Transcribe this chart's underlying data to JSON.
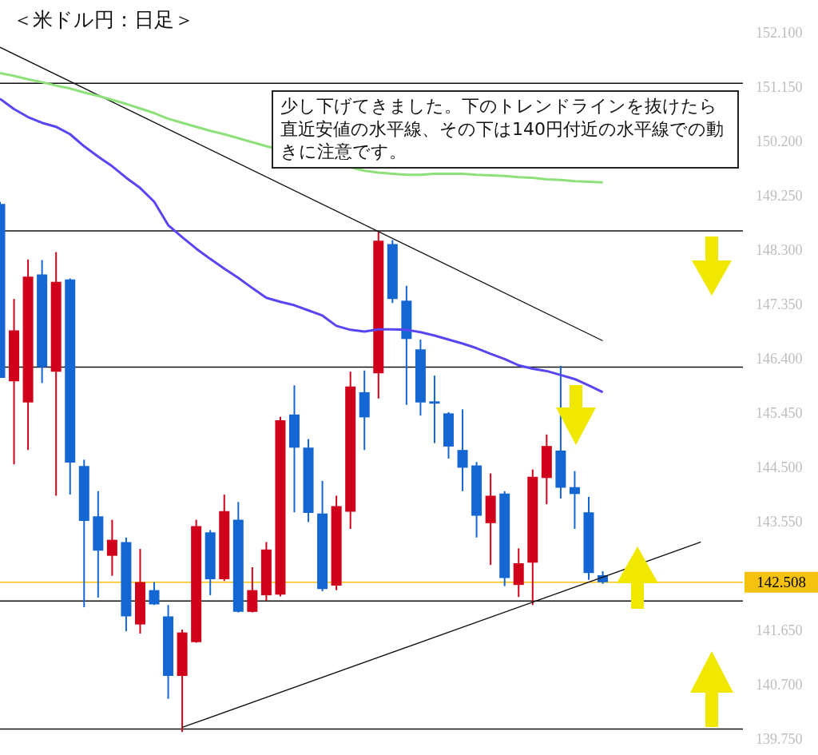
{
  "chart_data": {
    "type": "candlestick",
    "title": "＜米ドル円：日足＞",
    "categories": [
      null,
      null,
      null,
      null,
      null,
      null,
      null,
      null,
      null,
      null,
      null,
      null,
      null,
      null,
      null,
      null,
      null,
      null,
      null,
      null,
      null,
      null,
      null,
      null,
      null,
      null,
      null,
      null,
      null,
      null,
      null,
      null,
      null,
      null,
      null,
      null,
      null,
      null,
      null,
      null,
      null,
      null,
      null,
      null,
      null,
      null,
      null,
      null,
      null,
      null,
      null,
      null,
      null,
      null
    ],
    "ohlc": [
      [
        149.12,
        149.16,
        146.08,
        146.08
      ],
      [
        146.02,
        147.46,
        144.57,
        146.91
      ],
      [
        145.65,
        148.15,
        144.82,
        147.85
      ],
      [
        147.89,
        148.14,
        145.99,
        146.27
      ],
      [
        146.19,
        148.28,
        144.02,
        147.76
      ],
      [
        147.8,
        147.82,
        144.04,
        144.6
      ],
      [
        144.54,
        144.65,
        142.07,
        143.58
      ],
      [
        143.66,
        144.1,
        142.24,
        143.06
      ],
      [
        142.97,
        143.6,
        142.62,
        143.25
      ],
      [
        143.21,
        143.29,
        141.65,
        141.91
      ],
      [
        141.77,
        143.09,
        141.61,
        142.51
      ],
      [
        142.37,
        142.51,
        142.11,
        142.12
      ],
      [
        141.91,
        142.11,
        140.47,
        140.87
      ],
      [
        140.87,
        141.68,
        139.89,
        141.63
      ],
      [
        141.46,
        143.6,
        141.45,
        143.49
      ],
      [
        143.38,
        143.42,
        142.28,
        142.56
      ],
      [
        142.56,
        144.04,
        142.53,
        143.75
      ],
      [
        143.6,
        143.91,
        141.98,
        141.99
      ],
      [
        141.99,
        142.77,
        141.98,
        142.37
      ],
      [
        142.28,
        143.21,
        142.18,
        143.08
      ],
      [
        142.29,
        145.4,
        142.26,
        145.34
      ],
      [
        145.44,
        145.95,
        143.73,
        144.86
      ],
      [
        144.86,
        145.01,
        143.56,
        143.72
      ],
      [
        143.71,
        144.28,
        142.35,
        142.39
      ],
      [
        142.45,
        144.02,
        142.37,
        143.84
      ],
      [
        143.74,
        146.19,
        143.44,
        145.93
      ],
      [
        145.83,
        146.21,
        144.82,
        145.39
      ],
      [
        146.16,
        148.64,
        145.72,
        148.48
      ],
      [
        148.42,
        148.49,
        147.39,
        147.46
      ],
      [
        147.43,
        147.69,
        145.61,
        146.76
      ],
      [
        146.58,
        146.75,
        145.42,
        145.65
      ],
      [
        145.67,
        146.12,
        144.94,
        145.63
      ],
      [
        145.46,
        145.48,
        144.67,
        144.88
      ],
      [
        144.82,
        145.53,
        144.1,
        144.51
      ],
      [
        144.55,
        144.61,
        143.29,
        143.67
      ],
      [
        143.54,
        144.41,
        142.81,
        144.02
      ],
      [
        144.06,
        144.1,
        142.44,
        142.58
      ],
      [
        142.46,
        143.1,
        142.25,
        142.84
      ],
      [
        142.85,
        144.48,
        142.11,
        144.35
      ],
      [
        144.33,
        145.09,
        143.87,
        144.89
      ],
      [
        144.81,
        146.29,
        143.97,
        144.16
      ],
      [
        144.17,
        144.45,
        143.44,
        144.05
      ],
      [
        143.73,
        144.0,
        142.55,
        142.67
      ],
      [
        142.63,
        142.7,
        142.48,
        142.508
      ],
      null,
      null,
      null,
      null,
      null,
      null,
      null,
      null,
      null,
      null
    ],
    "colors": [
      "#1466d2",
      "#d0021b",
      "#d0021b",
      "#1466d2",
      "#d0021b",
      "#1466d2",
      "#1466d2",
      "#1466d2",
      "#d0021b",
      "#1466d2",
      "#d0021b",
      "#1466d2",
      "#1466d2",
      "#d0021b",
      "#d0021b",
      "#1466d2",
      "#d0021b",
      "#1466d2",
      "#d0021b",
      "#d0021b",
      "#d0021b",
      "#1466d2",
      "#1466d2",
      "#1466d2",
      "#d0021b",
      "#d0021b",
      "#1466d2",
      "#d0021b",
      "#1466d2",
      "#1466d2",
      "#1466d2",
      "#1466d2",
      "#1466d2",
      "#1466d2",
      "#1466d2",
      "#d0021b",
      "#1466d2",
      "#d0021b",
      "#d0021b",
      "#d0021b",
      "#1466d2",
      "#1466d2",
      "#1466d2",
      "#1466d2",
      null,
      null,
      null,
      null,
      null,
      null,
      null,
      null,
      null,
      null
    ],
    "series": [
      {
        "type": "line",
        "color": "#5a45f2",
        "values": [
          150.96,
          150.78,
          150.64,
          150.54,
          150.47,
          150.34,
          150.13,
          149.95,
          149.78,
          149.58,
          149.4,
          149.16,
          148.75,
          148.54,
          148.34,
          148.16,
          147.99,
          147.83,
          147.65,
          147.48,
          147.41,
          147.35,
          147.26,
          147.17,
          146.99,
          146.92,
          146.89,
          146.93,
          146.93,
          146.92,
          146.88,
          146.82,
          146.75,
          146.68,
          146.6,
          146.5,
          146.41,
          146.3,
          146.24,
          146.2,
          146.13,
          146.06,
          145.95,
          145.83,
          null,
          null,
          null,
          null,
          null,
          null,
          null,
          null,
          null,
          null
        ]
      },
      {
        "type": "line",
        "color": "#8ee07a",
        "values": [
          151.41,
          151.36,
          151.3,
          151.25,
          151.19,
          151.14,
          151.07,
          151.01,
          150.94,
          150.87,
          150.79,
          150.71,
          150.61,
          150.54,
          150.47,
          150.4,
          150.34,
          150.27,
          150.2,
          150.13,
          null,
          null,
          null,
          null,
          null,
          null,
          149.7,
          149.67,
          149.65,
          149.63,
          149.63,
          149.65,
          149.65,
          149.65,
          149.63,
          149.62,
          149.61,
          149.59,
          149.58,
          149.55,
          149.54,
          149.52,
          149.51,
          149.5,
          null,
          null,
          null,
          null,
          null,
          null,
          null,
          null,
          null,
          null
        ]
      },
      {
        "type": "line",
        "color": "#111111",
        "values": [
          151.86,
          null,
          null,
          null,
          null,
          null,
          null,
          null,
          null,
          null,
          null,
          null,
          null,
          null,
          null,
          null,
          null,
          null,
          null,
          null,
          null,
          null,
          null,
          null,
          null,
          null,
          null,
          null,
          null,
          null,
          null,
          null,
          null,
          null,
          null,
          null,
          null,
          null,
          null,
          null,
          null,
          null,
          null,
          146.73,
          null,
          null,
          null,
          null,
          null,
          null,
          null,
          null,
          null,
          null
        ]
      },
      {
        "type": "line",
        "color": "#111111",
        "values": [
          null,
          null,
          null,
          null,
          null,
          null,
          null,
          null,
          null,
          null,
          null,
          null,
          null,
          139.97,
          null,
          null,
          null,
          null,
          null,
          null,
          null,
          null,
          null,
          null,
          null,
          null,
          null,
          null,
          null,
          null,
          null,
          null,
          null,
          null,
          null,
          null,
          null,
          null,
          null,
          null,
          null,
          null,
          null,
          null,
          null,
          null,
          null,
          null,
          null,
          null,
          143.21,
          null,
          null,
          null
        ]
      }
    ],
    "ylim": [
      139.75,
      152.1
    ],
    "yticks": [
      {
        "value": 152.1,
        "label": "152.100"
      },
      {
        "value": 151.15,
        "label": "151.150"
      },
      {
        "value": 150.2,
        "label": "150.200"
      },
      {
        "value": 149.25,
        "label": "149.250"
      },
      {
        "value": 148.3,
        "label": "148.300"
      },
      {
        "value": 147.35,
        "label": "147.350"
      },
      {
        "value": 146.4,
        "label": "146.400"
      },
      {
        "value": 145.45,
        "label": "145.450"
      },
      {
        "value": 144.5,
        "label": "144.500"
      },
      {
        "value": 143.55,
        "label": "143.550"
      },
      {
        "value": 141.65,
        "label": "141.650"
      },
      {
        "value": 140.7,
        "label": "140.700"
      },
      {
        "value": 139.75,
        "label": "139.750"
      }
    ],
    "ref_lines": [
      {
        "axis": "y",
        "value": 151.23,
        "color": "#111111"
      },
      {
        "axis": "y",
        "value": 148.65,
        "color": "#111111"
      },
      {
        "axis": "y",
        "value": 146.27,
        "color": "#111111"
      },
      {
        "axis": "y",
        "value": 142.18,
        "color": "#111111"
      },
      {
        "axis": "y",
        "value": 139.94,
        "color": "#111111"
      },
      {
        "axis": "y",
        "value": 142.508,
        "label": "142.508",
        "color": "#f5c20f"
      }
    ],
    "annotations": [
      "少し下げてきました。下のトレンドラインを抜けたら直近安値の水平線、その下は140円付近の水平線での動きに注意です。"
    ],
    "tick_labels": "y",
    "grid": false
  }
}
